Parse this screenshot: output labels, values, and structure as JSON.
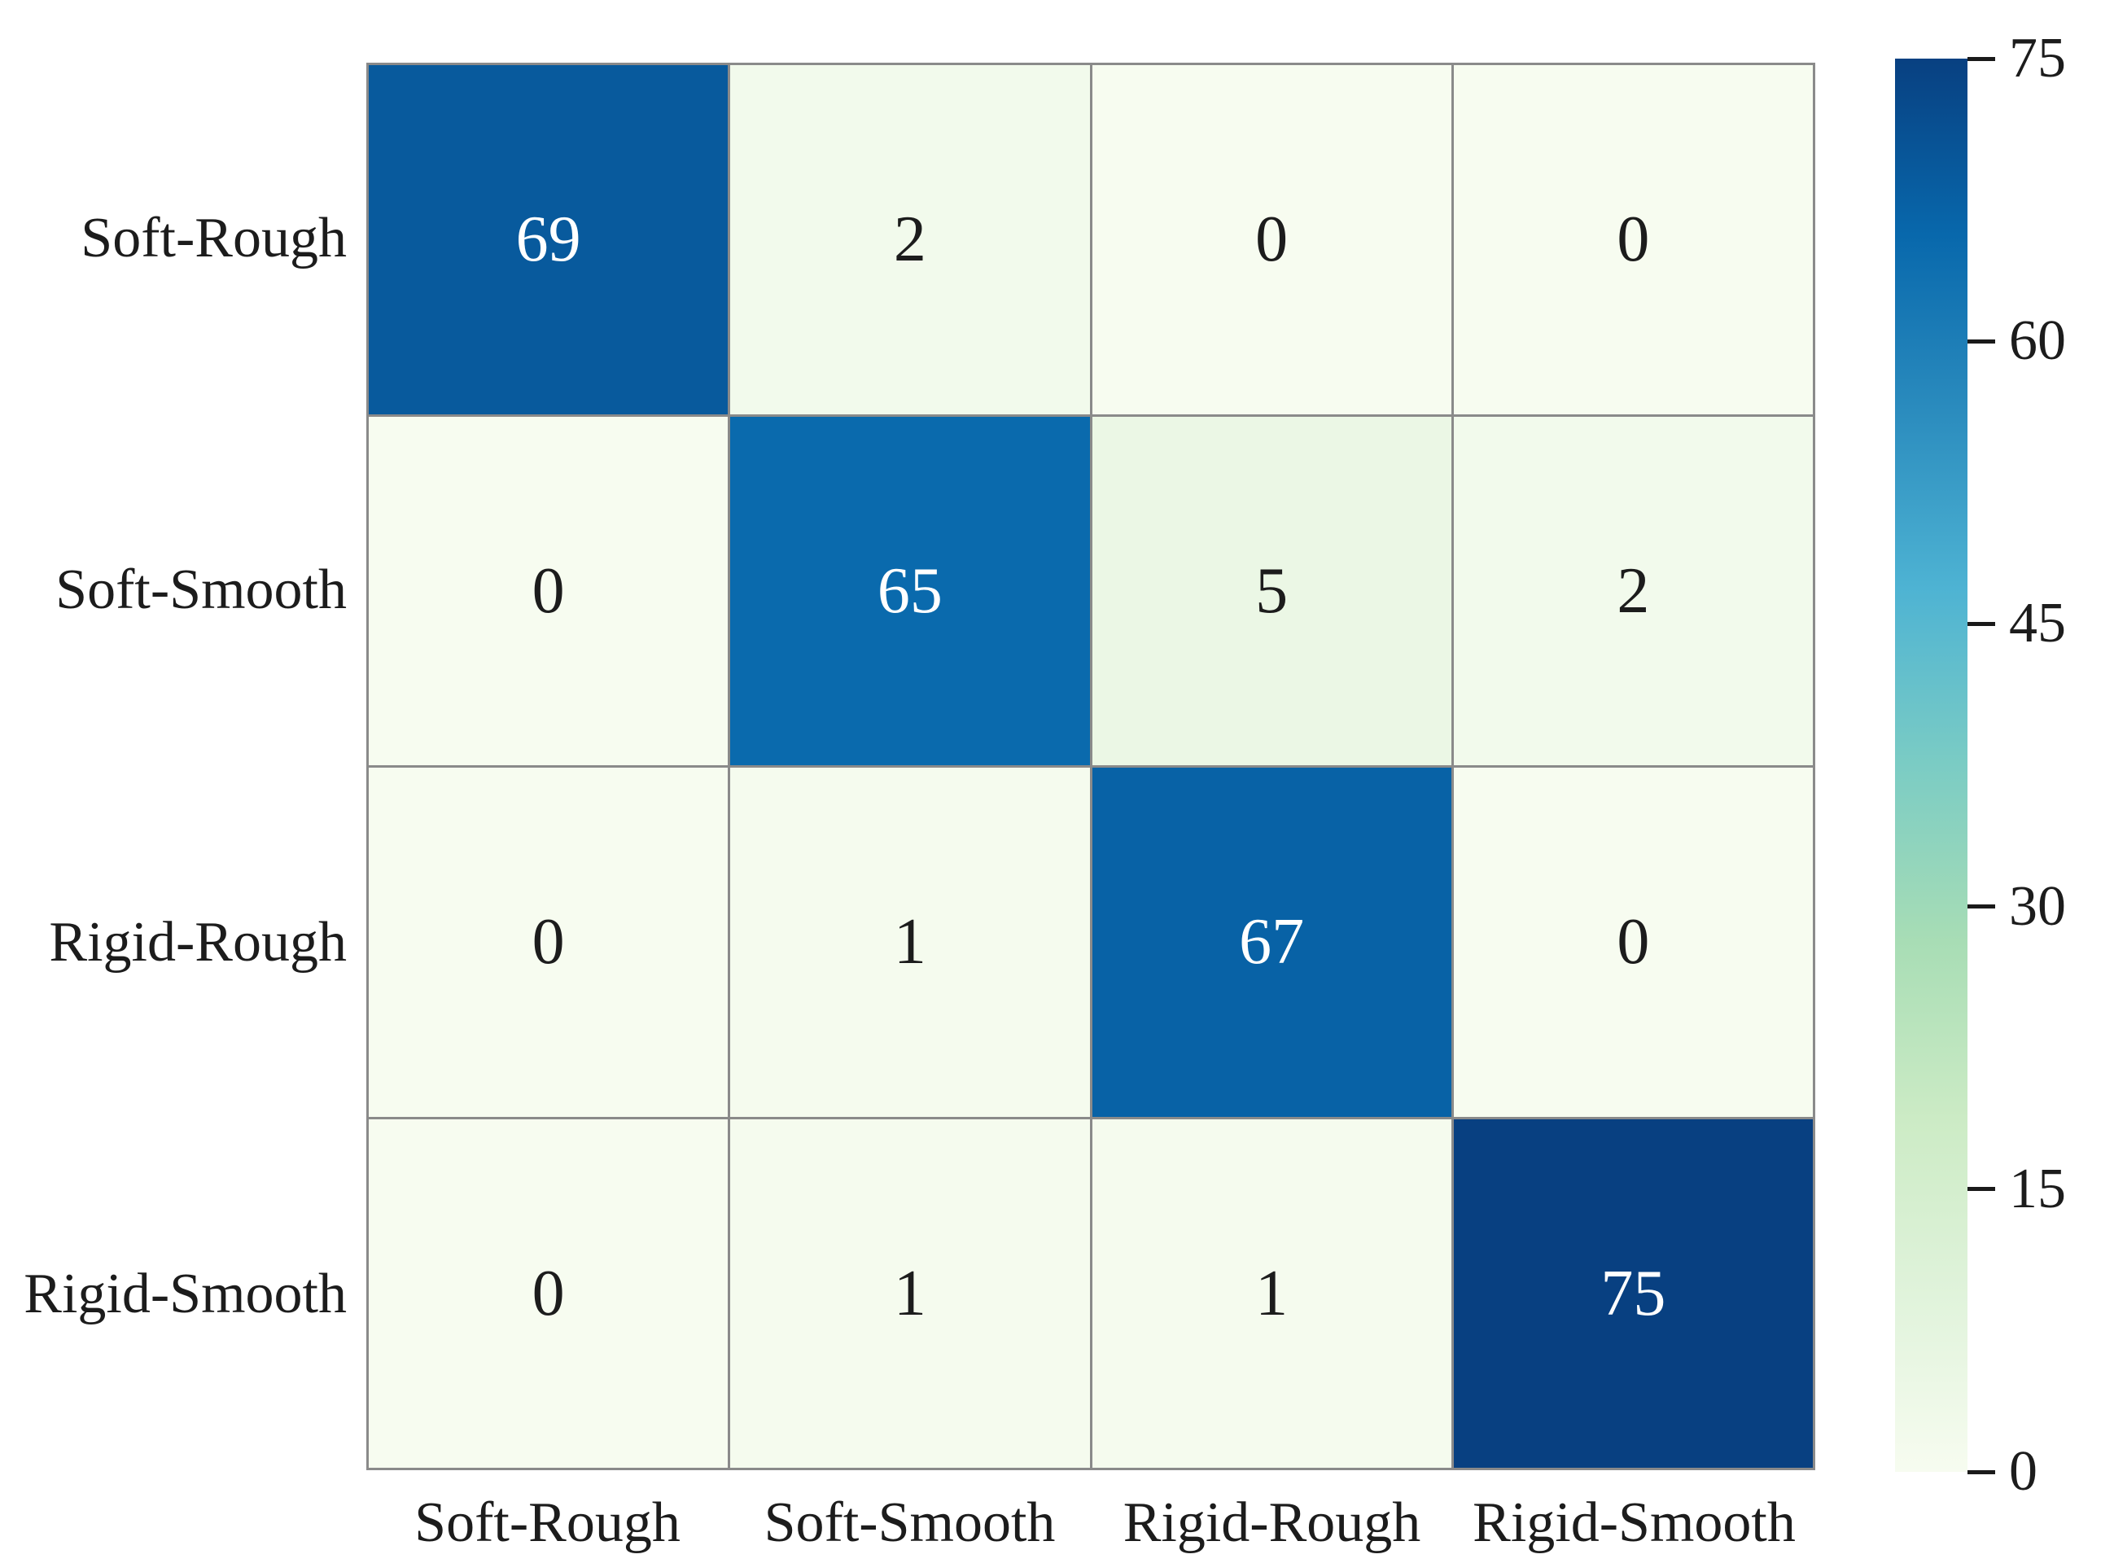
{
  "figure": {
    "background_color": "#ffffff"
  },
  "chart_data": {
    "type": "heatmap",
    "title": "",
    "rows": [
      "Soft-Rough",
      "Soft-Smooth",
      "Rigid-Rough",
      "Rigid-Smooth"
    ],
    "cols": [
      "Soft-Rough",
      "Soft-Smooth",
      "Rigid-Rough",
      "Rigid-Smooth"
    ],
    "values": [
      [
        69,
        2,
        0,
        0
      ],
      [
        0,
        65,
        5,
        2
      ],
      [
        0,
        1,
        67,
        0
      ],
      [
        0,
        1,
        1,
        75
      ]
    ],
    "vmin": 0,
    "vmax": 75,
    "colorbar": {
      "position": "right",
      "ticks": [
        75,
        60,
        45,
        30,
        15,
        0
      ]
    },
    "colormap": {
      "name": "GnBu",
      "anchors": [
        "#f7fcf0",
        "#e0f3db",
        "#ccebc5",
        "#a8ddb5",
        "#7bccc4",
        "#4eb3d3",
        "#2b8cbe",
        "#0868ac",
        "#084081"
      ]
    },
    "grid_line_color": "#8a8a8a",
    "tick_color": "#1a1a1a",
    "text_color_on_dark": "#ffffff",
    "text_color_on_light": "#1c1c1c"
  }
}
